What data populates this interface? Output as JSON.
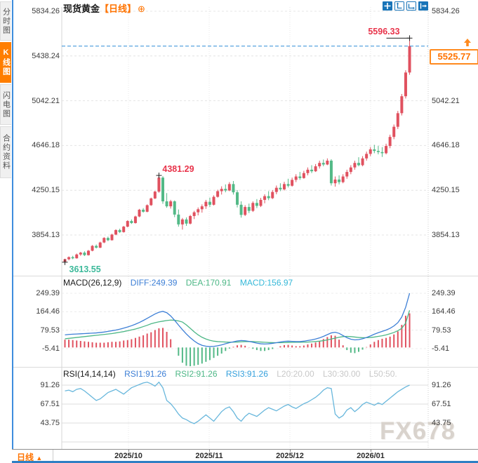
{
  "app": {
    "title": "现货黄金",
    "subtitle": "【日线】",
    "add_icon": "⊕"
  },
  "toolbar": {
    "icons": [
      "move",
      "scale-y",
      "scale-x",
      "exit"
    ]
  },
  "sidebar": {
    "tabs": [
      {
        "label": "分时图",
        "active": false
      },
      {
        "label": "K线图",
        "active": true
      },
      {
        "label": "闪电图",
        "active": false
      },
      {
        "label": "合约资料",
        "active": false
      }
    ]
  },
  "indicators": {
    "macd": {
      "title": "MACD(26,12,9)",
      "diff": "DIFF:249.39",
      "dea": "DEA:170.91",
      "macd": "MACD:156.97"
    },
    "rsi": {
      "title": "RSI(14,14,14)",
      "rsi1": "RSI1:91.26",
      "rsi2": "RSI2:91.26",
      "rsi3": "RSI3:91.26",
      "l20": "L20:20.00",
      "l30": "L30:30.00",
      "l50": "L50:50."
    }
  },
  "price_box": {
    "value": "5525.77"
  },
  "watermark": "FX678",
  "bottom": {
    "period_label": "日线",
    "period_arrow": "▲"
  },
  "colors": {
    "up": "#e0515f",
    "down": "#53b987",
    "accent_orange": "#ff7300",
    "icon_blue": "#1874b8",
    "current_line": "#2f8ed8",
    "diff_blue": "#3d7fd6",
    "dea_green": "#4db786",
    "macd_cyan": "#35b8d8",
    "rsi_line": "#68b7dc"
  },
  "chart_data": [
    {
      "type": "candlestick",
      "symbol": "现货黄金",
      "period": "日线",
      "x_tick_labels": [
        "2025/10",
        "2025/11",
        "2025/12",
        "2026/01"
      ],
      "y_ticks": [
        5834.26,
        5438.24,
        5042.21,
        4646.18,
        4250.15,
        3854.13
      ],
      "y_tick_labels": [
        "5834.26",
        "5438.24",
        "5042.21",
        "4646.18",
        "4250.15",
        "3854.13"
      ],
      "current_price": 5525.77,
      "up_color": "#e0515f",
      "down_color": "#53b987",
      "markers": [
        {
          "label": "5596.33",
          "index": 88,
          "at": "high",
          "color": "#e8334a"
        },
        {
          "label": "4381.29",
          "index": 24,
          "at": "high",
          "color": "#e8334a"
        },
        {
          "label": "3613.55",
          "index": 0,
          "at": "low",
          "color": "#3cb99a"
        }
      ],
      "candles": [
        [
          3618,
          3645,
          3613.55,
          3640
        ],
        [
          3640,
          3665,
          3630,
          3658
        ],
        [
          3658,
          3670,
          3640,
          3648
        ],
        [
          3648,
          3690,
          3645,
          3682
        ],
        [
          3682,
          3705,
          3670,
          3698
        ],
        [
          3698,
          3710,
          3668,
          3676
        ],
        [
          3676,
          3722,
          3672,
          3715
        ],
        [
          3715,
          3765,
          3710,
          3758
        ],
        [
          3758,
          3770,
          3735,
          3742
        ],
        [
          3742,
          3795,
          3738,
          3788
        ],
        [
          3788,
          3835,
          3782,
          3828
        ],
        [
          3828,
          3840,
          3800,
          3808
        ],
        [
          3808,
          3865,
          3805,
          3858
        ],
        [
          3858,
          3905,
          3852,
          3898
        ],
        [
          3898,
          3910,
          3872,
          3880
        ],
        [
          3880,
          3935,
          3875,
          3928
        ],
        [
          3928,
          3985,
          3922,
          3978
        ],
        [
          3978,
          3992,
          3952,
          3960
        ],
        [
          3960,
          4025,
          3955,
          4018
        ],
        [
          4018,
          4085,
          4012,
          4078
        ],
        [
          4078,
          4092,
          4052,
          4060
        ],
        [
          4060,
          4125,
          4055,
          4118
        ],
        [
          4118,
          4185,
          4112,
          4178
        ],
        [
          4178,
          4245,
          4172,
          4238
        ],
        [
          4238,
          4381.29,
          4228,
          4362
        ],
        [
          4362,
          4375,
          4130,
          4152
        ],
        [
          4152,
          4225,
          4095,
          4108
        ],
        [
          4108,
          4165,
          4088,
          4152
        ],
        [
          4152,
          4160,
          4012,
          4035
        ],
        [
          4035,
          4080,
          3928,
          3948
        ],
        [
          3948,
          4005,
          3902,
          3992
        ],
        [
          3992,
          4010,
          3935,
          3955
        ],
        [
          3955,
          4032,
          3948,
          4022
        ],
        [
          4022,
          4068,
          3995,
          4055
        ],
        [
          4055,
          4098,
          4028,
          4082
        ],
        [
          4082,
          4125,
          4052,
          4108
        ],
        [
          4108,
          4165,
          4085,
          4148
        ],
        [
          4148,
          4185,
          4102,
          4122
        ],
        [
          4122,
          4205,
          4115,
          4192
        ],
        [
          4192,
          4255,
          4185,
          4242
        ],
        [
          4242,
          4285,
          4212,
          4262
        ],
        [
          4262,
          4302,
          4232,
          4248
        ],
        [
          4248,
          4322,
          4242,
          4305
        ],
        [
          4305,
          4332,
          4212,
          4232
        ],
        [
          4232,
          4252,
          4098,
          4122
        ],
        [
          4122,
          4152,
          4008,
          4032
        ],
        [
          4032,
          4118,
          4022,
          4102
        ],
        [
          4102,
          4132,
          4048,
          4068
        ],
        [
          4068,
          4152,
          4058,
          4138
        ],
        [
          4138,
          4172,
          4092,
          4112
        ],
        [
          4112,
          4182,
          4102,
          4165
        ],
        [
          4165,
          4215,
          4135,
          4198
        ],
        [
          4198,
          4242,
          4162,
          4180
        ],
        [
          4180,
          4252,
          4172,
          4235
        ],
        [
          4235,
          4292,
          4215,
          4272
        ],
        [
          4272,
          4312,
          4242,
          4258
        ],
        [
          4258,
          4325,
          4248,
          4305
        ],
        [
          4305,
          4352,
          4275,
          4290
        ],
        [
          4290,
          4362,
          4282,
          4342
        ],
        [
          4342,
          4392,
          4322,
          4372
        ],
        [
          4372,
          4412,
          4342,
          4358
        ],
        [
          4358,
          4422,
          4352,
          4402
        ],
        [
          4402,
          4452,
          4382,
          4432
        ],
        [
          4432,
          4472,
          4402,
          4418
        ],
        [
          4418,
          4482,
          4412,
          4462
        ],
        [
          4462,
          4512,
          4442,
          4492
        ],
        [
          4492,
          4522,
          4462,
          4478
        ],
        [
          4478,
          4532,
          4472,
          4512
        ],
        [
          4512,
          4525,
          4292,
          4312
        ],
        [
          4312,
          4372,
          4282,
          4345
        ],
        [
          4345,
          4382,
          4302,
          4322
        ],
        [
          4322,
          4392,
          4312,
          4372
        ],
        [
          4372,
          4432,
          4352,
          4412
        ],
        [
          4412,
          4472,
          4392,
          4452
        ],
        [
          4452,
          4512,
          4432,
          4492
        ],
        [
          4492,
          4542,
          4462,
          4472
        ],
        [
          4472,
          4552,
          4462,
          4532
        ],
        [
          4532,
          4592,
          4512,
          4572
        ],
        [
          4572,
          4632,
          4552,
          4612
        ],
        [
          4612,
          4652,
          4578,
          4598
        ],
        [
          4598,
          4642,
          4568,
          4588
        ],
        [
          4588,
          4632,
          4545,
          4578
        ],
        [
          4578,
          4662,
          4568,
          4642
        ],
        [
          4642,
          4742,
          4622,
          4722
        ],
        [
          4722,
          4832,
          4702,
          4812
        ],
        [
          4812,
          4952,
          4792,
          4932
        ],
        [
          4932,
          5102,
          4912,
          5082
        ],
        [
          5082,
          5312,
          5062,
          5292
        ],
        [
          5292,
          5596.33,
          5272,
          5525.77
        ]
      ]
    },
    {
      "type": "macd",
      "title": "MACD(26,12,9)",
      "y_ticks": [
        249.39,
        164.46,
        79.53,
        -5.41
      ],
      "y_tick_labels": [
        "249.39",
        "164.46",
        "79.53",
        "-5.41"
      ],
      "values": {
        "diff": 249.39,
        "dea": 170.91,
        "macd": 156.97
      },
      "diff_color": "#3d7fd6",
      "dea_color": "#4db786",
      "hist_up_color": "#e0515f",
      "hist_down_color": "#53b987",
      "diff": [
        58,
        60,
        61,
        62,
        63,
        64,
        65,
        66,
        67,
        69,
        71,
        74,
        77,
        80,
        84,
        89,
        94,
        100,
        107,
        115,
        124,
        134,
        144,
        154,
        162,
        166,
        160,
        145,
        125,
        103,
        82,
        62,
        45,
        30,
        18,
        10,
        6,
        4,
        5,
        8,
        12,
        17,
        22,
        26,
        30,
        32,
        31,
        28,
        24,
        20,
        17,
        16,
        17,
        19,
        22,
        25,
        28,
        29,
        28,
        27,
        27,
        29,
        32,
        35,
        39,
        44,
        51,
        59,
        67,
        70,
        65,
        55,
        45,
        38,
        35,
        36,
        40,
        46,
        53,
        61,
        68,
        74,
        80,
        88,
        99,
        114,
        140,
        185,
        249.39
      ],
      "dea": [
        40,
        42,
        44,
        46,
        48,
        50,
        52,
        54,
        56,
        58,
        60,
        62,
        64,
        67,
        70,
        73,
        77,
        81,
        85,
        90,
        96,
        102,
        109,
        114,
        118,
        121,
        124,
        126,
        125,
        122,
        117,
        104,
        88,
        72,
        58,
        47,
        39,
        33,
        29,
        27,
        26,
        25,
        24.5,
        24.5,
        25,
        26,
        27,
        27.5,
        27,
        26,
        25,
        24,
        23,
        22.5,
        22,
        22,
        22.5,
        23,
        23.5,
        24,
        24,
        24.5,
        25,
        26,
        27.5,
        29,
        31.5,
        35,
        39,
        43,
        47,
        50,
        51,
        50,
        48,
        46,
        45,
        45,
        46,
        48,
        51,
        54,
        58,
        63,
        69,
        77,
        88,
        112,
        170.91
      ]
    },
    {
      "type": "line",
      "title": "RSI(14,14,14)",
      "y_ticks": [
        91.26,
        67.51,
        43.75,
        20.0
      ],
      "y_tick_labels": [
        "91.26",
        "67.51",
        "43.75"
      ],
      "line_color": "#68b7dc",
      "values": [
        84,
        85,
        83,
        86,
        87,
        84,
        80,
        76,
        72,
        74,
        78,
        82,
        84,
        86,
        83,
        80,
        84,
        88,
        90,
        92,
        94,
        95,
        93,
        90,
        95,
        88,
        72,
        68,
        62,
        55,
        50,
        48,
        45,
        43,
        46,
        50,
        54,
        50,
        46,
        52,
        58,
        62,
        64,
        58,
        50,
        46,
        52,
        56,
        54,
        52,
        56,
        60,
        63,
        61,
        59,
        62,
        65,
        67,
        64,
        62,
        65,
        68,
        70,
        73,
        76,
        80,
        85,
        88,
        87,
        55,
        50,
        53,
        60,
        63,
        58,
        62,
        67,
        70,
        68,
        66,
        69,
        67,
        71,
        75,
        79,
        83,
        86,
        89,
        91.26
      ]
    }
  ]
}
